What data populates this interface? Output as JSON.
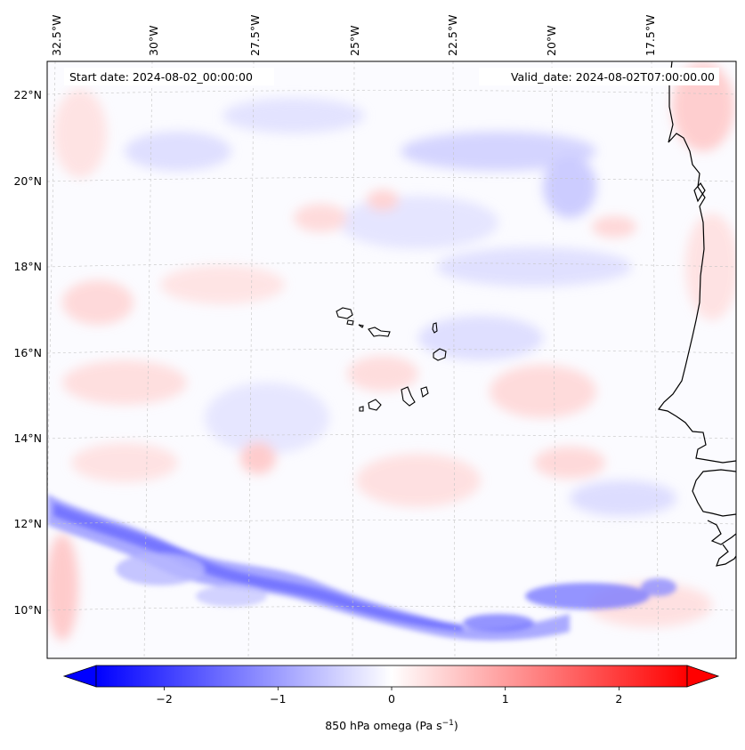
{
  "map": {
    "start_label": "Start date: 2024-08-02_00:00:00",
    "valid_label": "Valid_date: 2024-08-02T07:00:00.00",
    "lon_labels": [
      "32.5°W",
      "30°W",
      "27.5°W",
      "25°W",
      "22.5°W",
      "20°W",
      "17.5°W"
    ],
    "lat_labels": [
      "22°N",
      "20°N",
      "18°N",
      "16°N",
      "14°N",
      "12°N",
      "10°N"
    ],
    "coastline_color": "#000000",
    "gridline_style": "dashed-grey"
  },
  "colorbar": {
    "ticks": [
      "−2",
      "−1",
      "0",
      "1",
      "2"
    ],
    "tick_values": [
      -2,
      -1,
      0,
      1,
      2
    ],
    "range": [
      -2.6,
      2.6
    ],
    "label_main": "850 hPa omega (Pa s",
    "label_sup": "−1",
    "label_end": ")",
    "cmap": "bwr",
    "extend": "both"
  }
}
